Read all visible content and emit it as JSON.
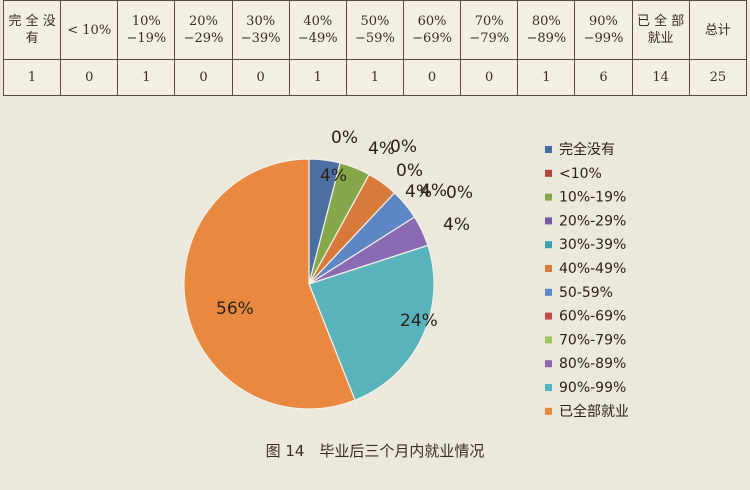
{
  "table": {
    "headers": [
      "完 全 没有",
      "< 10%",
      "10%−19%",
      "20%−29%",
      "30%−39%",
      "40%−49%",
      "50%−59%",
      "60%−69%",
      "70%−79%",
      "80%−89%",
      "90%−99%",
      "已 全 部 就业",
      "总计"
    ],
    "values": [
      "1",
      "0",
      "1",
      "0",
      "0",
      "1",
      "1",
      "0",
      "0",
      "1",
      "6",
      "14",
      "25"
    ]
  },
  "caption": "图 14　毕业后三个月内就业情况",
  "chart_data": {
    "type": "pie",
    "title": "图 14　毕业后三个月内就业情况",
    "categories": [
      "完全没有",
      "<10%",
      "10%-19%",
      "20%-29%",
      "30%-39%",
      "40%-49%",
      "50-59%",
      "60%-69%",
      "70%-79%",
      "80%-89%",
      "90%-99%",
      "已全部就业"
    ],
    "values": [
      1,
      0,
      1,
      0,
      0,
      1,
      1,
      0,
      0,
      1,
      6,
      14
    ],
    "percent_labels": [
      "4%",
      "0%",
      "4%",
      "0%",
      "0%",
      "4%",
      "4%",
      "0%",
      "0%",
      "4%",
      "24%",
      "56%"
    ],
    "colors": [
      "#4a6fa0",
      "#b0473f",
      "#86a64a",
      "#7a5aa0",
      "#3e9fab",
      "#d6793a",
      "#5e86c4",
      "#c24a4a",
      "#9dc25e",
      "#8a6ab3",
      "#59b3bd",
      "#e8893f"
    ],
    "legend_position": "right"
  }
}
